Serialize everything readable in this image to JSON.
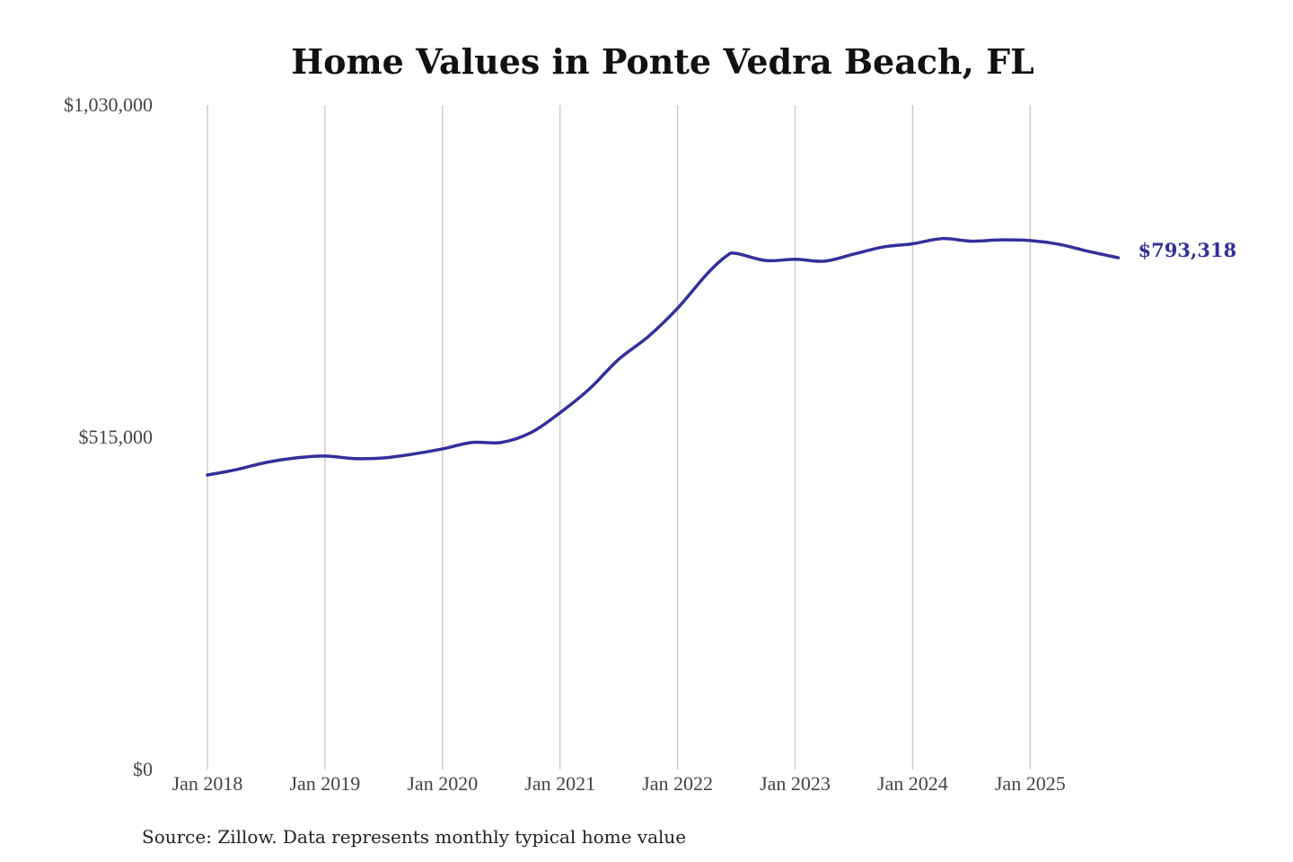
{
  "chart_data": {
    "type": "line",
    "title": "Home Values in Ponte Vedra Beach, FL",
    "source": "Source: Zillow. Data represents monthly typical home value",
    "xlabel": "",
    "ylabel": "",
    "ylim": [
      0,
      1030000
    ],
    "y_ticks": [
      {
        "value": 0,
        "label": "$0"
      },
      {
        "value": 515000,
        "label": "$515,000"
      },
      {
        "value": 1030000,
        "label": "$1,030,000"
      }
    ],
    "x_ticks": [
      {
        "value": "2018-01",
        "label": "Jan 2018"
      },
      {
        "value": "2019-01",
        "label": "Jan 2019"
      },
      {
        "value": "2020-01",
        "label": "Jan 2020"
      },
      {
        "value": "2021-01",
        "label": "Jan 2021"
      },
      {
        "value": "2022-01",
        "label": "Jan 2022"
      },
      {
        "value": "2023-01",
        "label": "Jan 2023"
      },
      {
        "value": "2024-01",
        "label": "Jan 2024"
      },
      {
        "value": "2025-01",
        "label": "Jan 2025"
      }
    ],
    "grid": {
      "vertical": true,
      "horizontal": false
    },
    "line_color": "#33309a",
    "end_label": "$793,318",
    "series": [
      {
        "x": [
          "2018-01",
          "2018-04",
          "2018-07",
          "2018-10",
          "2019-01",
          "2019-04",
          "2019-07",
          "2019-10",
          "2020-01",
          "2020-04",
          "2020-07",
          "2020-10",
          "2021-01",
          "2021-04",
          "2021-07",
          "2021-10",
          "2022-01",
          "2022-04",
          "2022-06",
          "2022-07",
          "2022-10",
          "2023-01",
          "2023-04",
          "2023-07",
          "2023-10",
          "2024-01",
          "2024-04",
          "2024-07",
          "2024-10",
          "2025-01",
          "2025-04",
          "2025-07",
          "2025-10"
        ],
        "y": [
          456500,
          465000,
          476000,
          483000,
          486000,
          482000,
          483000,
          489000,
          497000,
          507000,
          507000,
          522000,
          553000,
          590000,
          636000,
          671000,
          715000,
          768000,
          796000,
          800000,
          789000,
          791000,
          788000,
          799000,
          810000,
          815000,
          823000,
          819000,
          821000,
          820000,
          814000,
          803000,
          793318
        ]
      }
    ]
  }
}
